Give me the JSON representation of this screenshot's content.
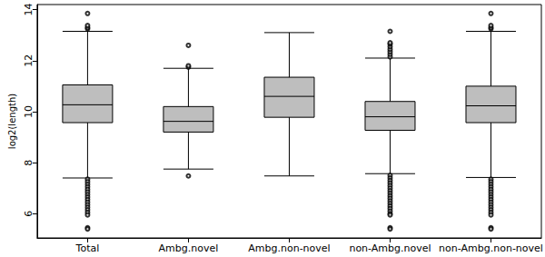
{
  "chart_data": {
    "type": "boxplot",
    "y_label": "log2(length)",
    "categories": [
      "Total",
      "Ambg.novel",
      "Ambg.non-novel",
      "non-Ambg.novel",
      "non-Ambg.non-novel"
    ],
    "values": [
      [
        7.4,
        9.57,
        10.27,
        11.05,
        13.15
      ],
      [
        7.75,
        9.2,
        9.62,
        10.2,
        11.7
      ],
      [
        7.48,
        9.78,
        10.6,
        11.35,
        13.1
      ],
      [
        7.57,
        9.27,
        9.8,
        10.4,
        12.1
      ],
      [
        7.42,
        9.57,
        10.23,
        11.0,
        13.15
      ]
    ],
    "outliers": [
      [
        7.35,
        7.25,
        7.15,
        7.05,
        6.95,
        6.85,
        6.75,
        6.65,
        6.55,
        6.45,
        6.35,
        6.25,
        6.15,
        6.05,
        5.95,
        5.45,
        5.4,
        13.25,
        13.3,
        13.38,
        13.85
      ],
      [
        7.48,
        11.75,
        11.8,
        12.6
      ],
      [],
      [
        7.5,
        7.4,
        7.3,
        7.2,
        7.1,
        7.0,
        6.9,
        6.8,
        6.7,
        6.6,
        6.5,
        6.4,
        6.3,
        6.2,
        6.1,
        6.0,
        5.95,
        5.45,
        5.4,
        12.15,
        12.25,
        12.35,
        12.45,
        12.55,
        12.65,
        12.7,
        13.15
      ],
      [
        7.35,
        7.25,
        7.15,
        7.05,
        6.95,
        6.85,
        6.75,
        6.65,
        6.55,
        6.45,
        6.35,
        6.25,
        6.15,
        6.05,
        5.95,
        5.45,
        5.4,
        13.25,
        13.3,
        13.38,
        13.85
      ]
    ],
    "color": "#bebebe",
    "ylim": [
      5.05,
      14.2
    ],
    "yticks": [
      6,
      8,
      10,
      12,
      14
    ],
    "grid": false
  }
}
